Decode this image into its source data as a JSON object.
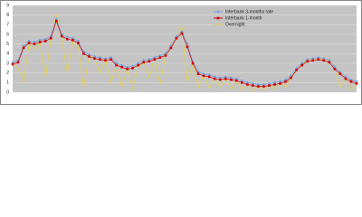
{
  "chart_data": {
    "type": "line",
    "ylim": [
      0,
      9
    ],
    "yticks": [
      0,
      1,
      2,
      3,
      4,
      5,
      6,
      7,
      8,
      9
    ],
    "grid": true,
    "legend": "top-right",
    "series": [
      {
        "name": "Interbank 3-months rate",
        "color": "#6f9fe0",
        "marker": "diamond",
        "values": [
          3.1,
          3.3,
          4.8,
          5.3,
          5.2,
          5.4,
          5.5,
          5.8,
          7.6,
          6.0,
          5.7,
          5.6,
          5.3,
          4.2,
          3.9,
          3.7,
          3.6,
          3.5,
          3.6,
          3.0,
          2.8,
          2.6,
          2.7,
          3.0,
          3.3,
          3.4,
          3.6,
          3.8,
          4.0,
          4.8,
          5.8,
          6.3,
          5.0,
          3.2,
          2.1,
          1.9,
          1.8,
          1.6,
          1.5,
          1.6,
          1.5,
          1.4,
          1.2,
          1.0,
          0.9,
          0.8,
          0.8,
          0.9,
          1.0,
          1.1,
          1.3,
          1.7,
          2.5,
          3.0,
          3.4,
          3.5,
          3.6,
          3.5,
          3.3,
          2.6,
          2.1,
          1.6,
          1.3,
          1.1
        ]
      },
      {
        "name": "Interbank 1-month",
        "color": "#d40000",
        "marker": "square",
        "values": [
          2.9,
          3.1,
          4.6,
          5.1,
          5.0,
          5.2,
          5.3,
          5.6,
          7.4,
          5.8,
          5.5,
          5.4,
          5.1,
          4.0,
          3.7,
          3.5,
          3.4,
          3.3,
          3.4,
          2.8,
          2.6,
          2.4,
          2.5,
          2.8,
          3.1,
          3.2,
          3.4,
          3.6,
          3.8,
          4.6,
          5.6,
          6.1,
          4.7,
          3.0,
          1.9,
          1.7,
          1.6,
          1.4,
          1.3,
          1.4,
          1.3,
          1.2,
          1.0,
          0.8,
          0.7,
          0.6,
          0.6,
          0.7,
          0.8,
          0.9,
          1.1,
          1.5,
          2.3,
          2.8,
          3.2,
          3.3,
          3.4,
          3.3,
          3.1,
          2.4,
          1.9,
          1.4,
          1.1,
          0.9
        ]
      },
      {
        "name": "Overnight",
        "color": "#e6d24a",
        "marker": "none",
        "values": [
          3.0,
          2.5,
          1.0,
          5.0,
          4.5,
          5.2,
          1.5,
          5.5,
          8.1,
          5.5,
          2.0,
          5.2,
          4.8,
          0.5,
          3.8,
          3.5,
          2.0,
          3.4,
          1.0,
          2.9,
          0.5,
          2.5,
          0.3,
          2.6,
          3.2,
          1.5,
          3.5,
          0.8,
          3.8,
          4.6,
          5.5,
          6.8,
          1.0,
          3.0,
          0.5,
          1.8,
          0.4,
          1.5,
          0.6,
          1.4,
          0.3,
          1.3,
          0.2,
          0.9,
          0.1,
          0.7,
          0.2,
          0.8,
          0.3,
          1.0,
          0.5,
          1.6,
          2.3,
          2.9,
          3.3,
          3.4,
          3.5,
          3.4,
          3.1,
          2.4,
          0.5,
          1.5,
          0.3,
          0.7
        ]
      }
    ]
  }
}
